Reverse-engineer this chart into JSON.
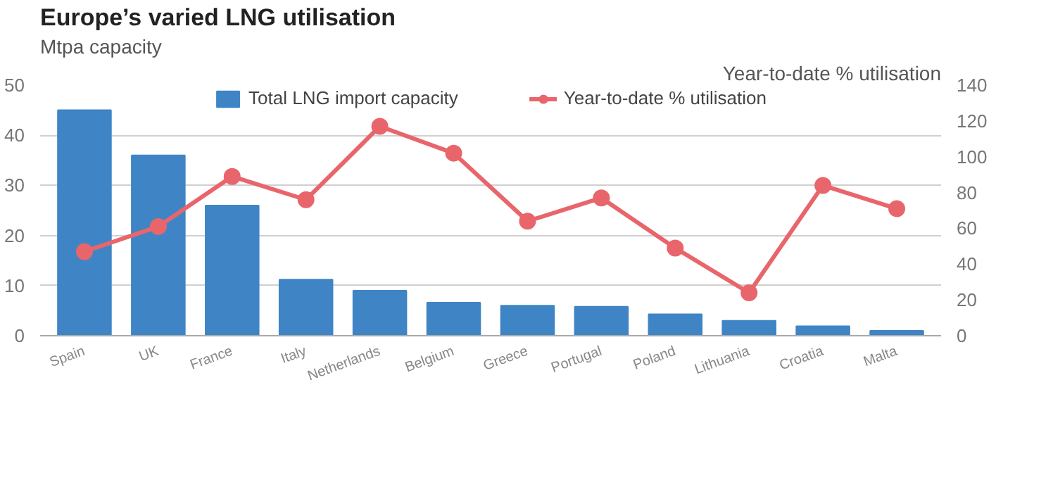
{
  "chart_data": {
    "type": "bar",
    "title": "Europe’s varied LNG utilisation",
    "ylabel": "Mtpa capacity",
    "y2label": "Year-to-date % utilisation",
    "categories": [
      "Spain",
      "UK",
      "France",
      "Italy",
      "Netherlands",
      "Belgium",
      "Greece",
      "Portugal",
      "Poland",
      "Lithuania",
      "Croatia",
      "Malta"
    ],
    "series": [
      {
        "name": "Total LNG import capacity",
        "color": "#3f85c6",
        "values": [
          45,
          36,
          26,
          11.2,
          9,
          6.6,
          6,
          5.8,
          4.3,
          3,
          1.9,
          1
        ]
      },
      {
        "name": "Year-to-date % utilisation",
        "type": "line",
        "axis": "y2",
        "color": "#e8666b",
        "marker": "circle",
        "values": [
          47,
          61,
          89,
          76,
          117,
          102,
          64,
          77,
          49,
          24,
          84,
          71
        ]
      }
    ],
    "ylim": [
      0,
      50
    ],
    "yticks": [
      0,
      10,
      20,
      30,
      40,
      50
    ],
    "y2lim": [
      0,
      140
    ],
    "y2ticks": [
      0,
      20,
      40,
      60,
      80,
      100,
      120,
      140
    ],
    "grid": "y",
    "legend": "top"
  }
}
